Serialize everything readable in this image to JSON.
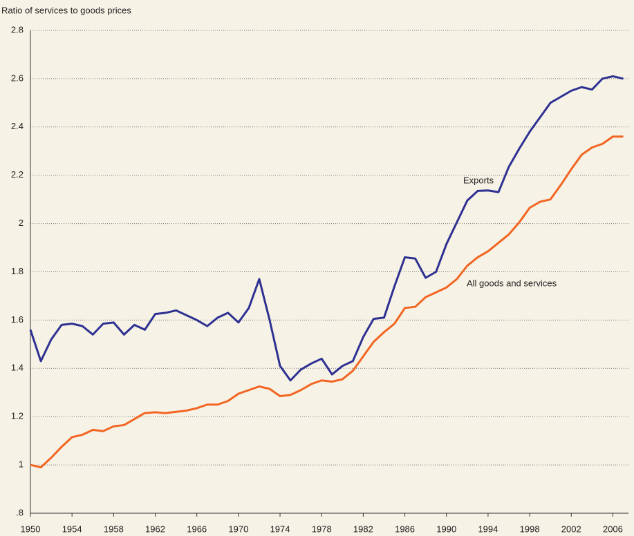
{
  "chart_data": {
    "type": "line",
    "y_label": "Ratio of services to goods prices",
    "x": [
      1950,
      1951,
      1952,
      1953,
      1954,
      1955,
      1956,
      1957,
      1958,
      1959,
      1960,
      1961,
      1962,
      1963,
      1964,
      1965,
      1966,
      1967,
      1968,
      1969,
      1970,
      1971,
      1972,
      1973,
      1974,
      1975,
      1976,
      1977,
      1978,
      1979,
      1980,
      1981,
      1982,
      1983,
      1984,
      1985,
      1986,
      1987,
      1988,
      1989,
      1990,
      1991,
      1992,
      1993,
      1994,
      1995,
      1996,
      1997,
      1998,
      1999,
      2000,
      2001,
      2002,
      2003,
      2004,
      2005,
      2006,
      2007
    ],
    "series": [
      {
        "name": "Exports",
        "color": "#2e3192",
        "values": [
          1.56,
          1.43,
          1.52,
          1.58,
          1.585,
          1.575,
          1.54,
          1.585,
          1.59,
          1.54,
          1.58,
          1.56,
          1.625,
          1.63,
          1.64,
          1.62,
          1.6,
          1.575,
          1.61,
          1.63,
          1.59,
          1.65,
          1.77,
          1.6,
          1.41,
          1.35,
          1.395,
          1.42,
          1.44,
          1.375,
          1.41,
          1.43,
          1.53,
          1.605,
          1.61,
          1.74,
          1.86,
          1.855,
          1.775,
          1.8,
          1.915,
          2.005,
          2.095,
          2.135,
          2.137,
          2.13,
          2.235,
          2.31,
          2.38,
          2.44,
          2.5,
          2.525,
          2.55,
          2.565,
          2.555,
          2.6,
          2.61,
          2.6
        ]
      },
      {
        "name": "All goods and services",
        "color": "#f26522",
        "values": [
          1.0,
          0.99,
          1.03,
          1.075,
          1.115,
          1.125,
          1.145,
          1.14,
          1.16,
          1.165,
          1.19,
          1.215,
          1.218,
          1.215,
          1.22,
          1.225,
          1.235,
          1.25,
          1.25,
          1.265,
          1.295,
          1.31,
          1.325,
          1.315,
          1.285,
          1.29,
          1.31,
          1.335,
          1.35,
          1.345,
          1.355,
          1.39,
          1.45,
          1.51,
          1.55,
          1.585,
          1.65,
          1.655,
          1.695,
          1.715,
          1.735,
          1.77,
          1.825,
          1.86,
          1.885,
          1.92,
          1.955,
          2.005,
          2.065,
          2.09,
          2.1,
          2.16,
          2.225,
          2.285,
          2.315,
          2.33,
          2.36,
          2.36
        ]
      }
    ],
    "xlim": [
      1950,
      2007.5
    ],
    "xticks": [
      1950,
      1954,
      1958,
      1962,
      1966,
      1970,
      1974,
      1978,
      1982,
      1986,
      1990,
      1994,
      1998,
      2002,
      2006
    ],
    "ylim": [
      0.8,
      2.8
    ],
    "yticks": [
      {
        "value": 0.8,
        "label": ".8"
      },
      1,
      1.2,
      1.4,
      1.6,
      1.8,
      2,
      2.2,
      2.4,
      2.6,
      2.8
    ],
    "grid": true
  }
}
